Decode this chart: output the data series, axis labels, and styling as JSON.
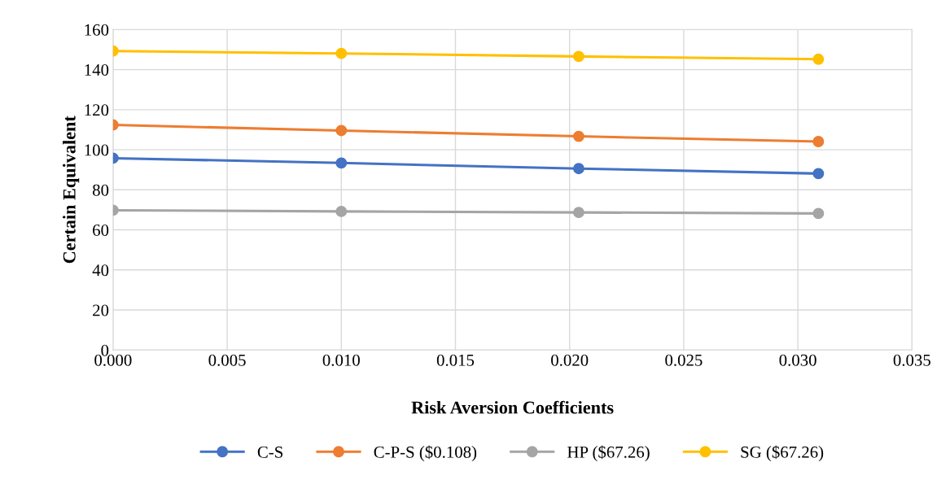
{
  "chart_data": {
    "type": "line",
    "xlabel": "Risk Aversion Coefficients",
    "ylabel": "Certain Equivalent",
    "x": [
      0,
      0.01,
      0.0204,
      0.0309
    ],
    "series": [
      {
        "name": "C-S",
        "color": "#4472c4",
        "values": [
          95.8,
          93.4,
          90.6,
          88.1
        ]
      },
      {
        "name": "C-P-S ($0.108)",
        "color": "#ed7d31",
        "values": [
          112.4,
          109.6,
          106.7,
          104.1
        ]
      },
      {
        "name": "HP ($67.26)",
        "color": "#a5a5a5",
        "values": [
          69.8,
          69.2,
          68.7,
          68.2
        ]
      },
      {
        "name": "SG ($67.26)",
        "color": "#ffc000",
        "values": [
          149.3,
          148.1,
          146.6,
          145.2
        ]
      }
    ],
    "xlim": [
      0,
      0.035
    ],
    "xticks": [
      {
        "value": 0,
        "label": "0.000"
      },
      {
        "value": 0.005,
        "label": "0.005"
      },
      {
        "value": 0.01,
        "label": "0.010"
      },
      {
        "value": 0.015,
        "label": "0.015"
      },
      {
        "value": 0.02,
        "label": "0.020"
      },
      {
        "value": 0.025,
        "label": "0.025"
      },
      {
        "value": 0.03,
        "label": "0.030"
      },
      {
        "value": 0.035,
        "label": "0.035"
      }
    ],
    "ylim": [
      0,
      160
    ],
    "yticks": [
      0,
      20,
      40,
      60,
      80,
      100,
      120,
      140,
      160
    ],
    "grid": true,
    "legend": "bottom",
    "marker": "circle",
    "line_style": "solid"
  }
}
